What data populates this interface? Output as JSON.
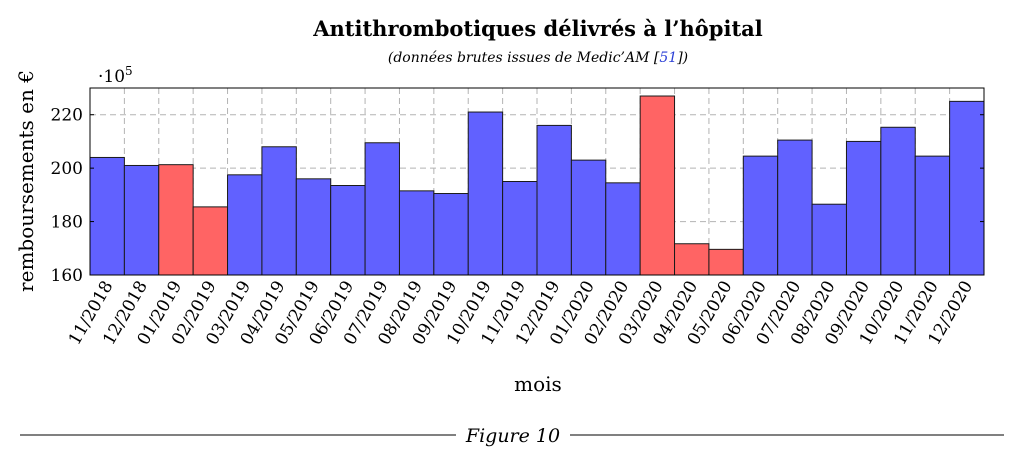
{
  "chart_data": {
    "type": "bar",
    "title": "Antithrombotiques délivrés à l’hôpital",
    "subtitle_text": "(données brutes issues de Medic’AM [",
    "subtitle_citation": "51",
    "subtitle_end": "])",
    "xlabel": "mois",
    "ylabel": "remboursements en €",
    "y_multiplier_base": "·10",
    "y_multiplier_exp": "5",
    "ylim": [
      160,
      230
    ],
    "yticks": [
      160,
      180,
      200,
      220
    ],
    "grid": true,
    "categories": [
      "11/2018",
      "12/2018",
      "01/2019",
      "02/2019",
      "03/2019",
      "04/2019",
      "05/2019",
      "06/2019",
      "07/2019",
      "08/2019",
      "09/2019",
      "10/2019",
      "11/2019",
      "12/2019",
      "01/2020",
      "02/2020",
      "03/2020",
      "04/2020",
      "05/2020",
      "06/2020",
      "07/2020",
      "08/2020",
      "09/2020",
      "10/2020",
      "11/2020",
      "12/2020"
    ],
    "values": [
      204,
      201,
      201.3,
      185.5,
      197.5,
      208,
      196,
      193.5,
      209.5,
      191.5,
      190.5,
      221,
      195,
      216,
      203,
      194.5,
      227,
      171.7,
      169.6,
      204.5,
      210.5,
      186.5,
      210,
      215.3,
      204.5,
      225
    ],
    "highlighted": [
      "01/2019",
      "02/2019",
      "03/2020",
      "04/2020",
      "05/2020"
    ],
    "colors": {
      "normal": "#6161ff",
      "highlight": "#ff6464",
      "edge": "#1a1a1a",
      "grid": "#b3b3b3"
    }
  },
  "caption": "Figure 10"
}
